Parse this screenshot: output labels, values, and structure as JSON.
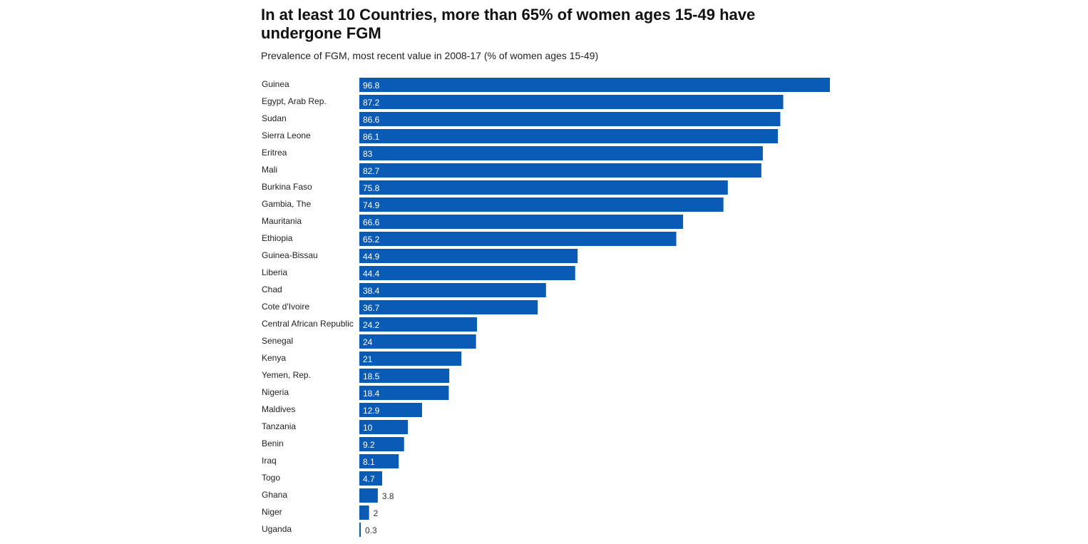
{
  "chart_data": {
    "type": "bar",
    "orientation": "horizontal",
    "title": "In at least 10 Countries, more than 65% of women ages 15-49 have undergone FGM",
    "subtitle": "Prevalence of FGM, most recent value in 2008-17 (% of women ages 15-49)",
    "categories": [
      "Guinea",
      "Egypt, Arab Rep.",
      "Sudan",
      "Sierra Leone",
      "Eritrea",
      "Mali",
      "Burkina Faso",
      "Gambia, The",
      "Mauritania",
      "Ethiopia",
      "Guinea-Bissau",
      "Liberia",
      "Chad",
      "Cote d'Ivoire",
      "Central African Republic",
      "Senegal",
      "Kenya",
      "Yemen, Rep.",
      "Nigeria",
      "Maldives",
      "Tanzania",
      "Benin",
      "Iraq",
      "Togo",
      "Ghana",
      "Niger",
      "Uganda"
    ],
    "values": [
      96.8,
      87.2,
      86.6,
      86.1,
      83,
      82.7,
      75.8,
      74.9,
      66.6,
      65.2,
      44.9,
      44.4,
      38.4,
      36.7,
      24.2,
      24,
      21,
      18.5,
      18.4,
      12.9,
      10,
      9.2,
      8.1,
      4.7,
      3.8,
      2,
      0.3
    ],
    "xlim": [
      0,
      96.8
    ],
    "grid": false,
    "color": "#0a5bb5"
  }
}
